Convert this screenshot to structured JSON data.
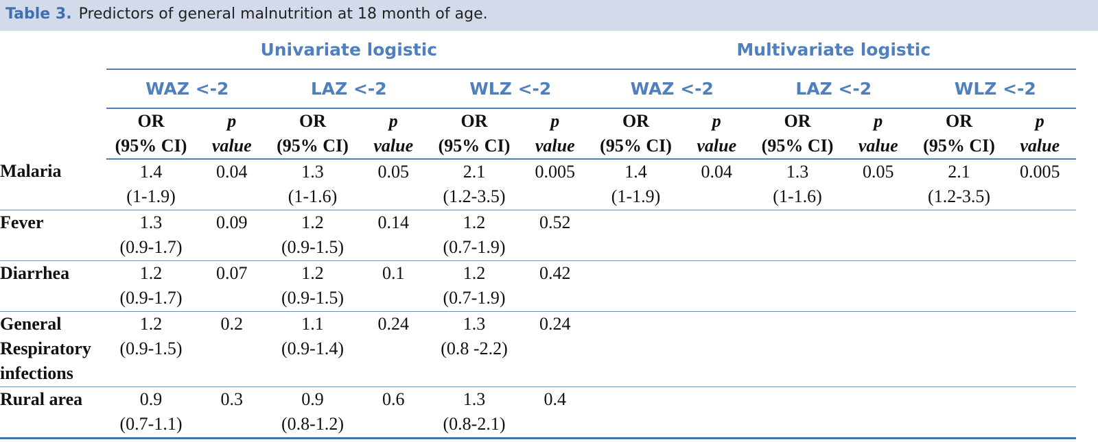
{
  "title": {
    "label": "Table 3.",
    "text": "Predictors of general malnutrition at 18 month of age."
  },
  "table": {
    "groups": [
      "Univariate logistic",
      "Multivariate logistic"
    ],
    "subgroups": [
      "WAZ <-2",
      "LAZ <-2",
      "WLZ <-2",
      "WAZ <-2",
      "LAZ <-2",
      "WLZ <-2"
    ],
    "column_headers": [
      [
        "OR",
        "(95% CI)"
      ],
      [
        "p",
        "value"
      ],
      [
        "OR",
        "(95% CI)"
      ],
      [
        "p",
        "value"
      ],
      [
        "OR",
        "(95% CI)"
      ],
      [
        "p",
        "value"
      ],
      [
        "OR",
        "(95% CI)"
      ],
      [
        "p",
        "value"
      ],
      [
        "OR",
        "(95% CI)"
      ],
      [
        "p",
        "value"
      ],
      [
        "OR",
        "(95% CI)"
      ],
      [
        "p",
        "value"
      ]
    ],
    "rows": [
      {
        "label": "Malaria",
        "cells": [
          [
            "1.4",
            "(1-1.9)"
          ],
          "0.04",
          [
            "1.3",
            "(1-1.6)"
          ],
          "0.05",
          [
            "2.1",
            "(1.2-3.5)"
          ],
          "0.005",
          [
            "1.4",
            "(1-1.9)"
          ],
          "0.04",
          [
            "1.3",
            "(1-1.6)"
          ],
          "0.05",
          [
            "2.1",
            "(1.2-3.5)"
          ],
          "0.005"
        ]
      },
      {
        "label": "Fever",
        "cells": [
          [
            "1.3",
            "(0.9-1.7)"
          ],
          "0.09",
          [
            "1.2",
            "(0.9-1.5)"
          ],
          "0.14",
          [
            "1.2",
            "(0.7-1.9)"
          ],
          "0.52"
        ]
      },
      {
        "label": "Diarrhea",
        "cells": [
          [
            "1.2",
            "(0.9-1.7)"
          ],
          "0.07",
          [
            "1.2",
            "(0.9-1.5)"
          ],
          "0.1",
          [
            "1.2",
            "(0.7-1.9)"
          ],
          "0.42"
        ]
      },
      {
        "label": "General Respiratory infections",
        "cells": [
          [
            "1.2",
            "(0.9-1.5)"
          ],
          "0.2",
          [
            "1.1",
            "(0.9-1.4)"
          ],
          "0.24",
          [
            "1.3",
            "(0.8 -2.2)"
          ],
          "0.24"
        ]
      },
      {
        "label": "Rural area",
        "cells": [
          [
            "0.9",
            "(0.7-1.1)"
          ],
          "0.3",
          [
            "0.9",
            "(0.8-1.2)"
          ],
          "0.6",
          [
            "1.3",
            "(0.8-2.1)"
          ],
          "0.4"
        ]
      }
    ]
  }
}
